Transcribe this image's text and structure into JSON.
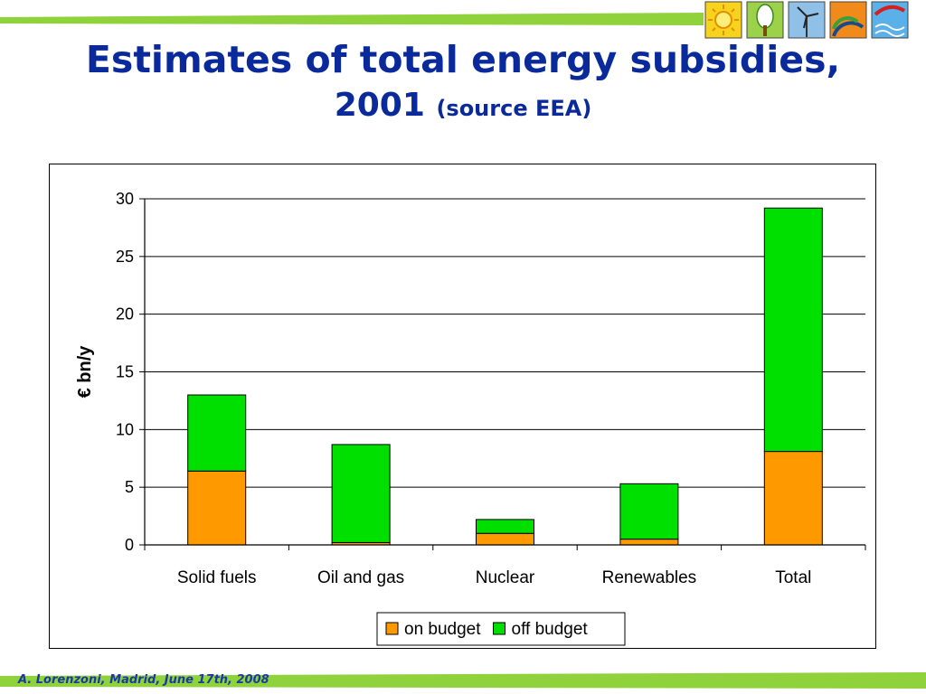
{
  "header": {
    "title_line1": "Estimates of total energy subsidies,",
    "title_year": "2001",
    "title_source": "(source EEA)",
    "band_color": "#8fd23c",
    "icons": [
      "sun-icon",
      "tree-icon",
      "wind-turbine-icon",
      "rainbow-icon",
      "wave-icon"
    ]
  },
  "footer": {
    "text": "A. Lorenzoni, Madrid, June 17th, 2008"
  },
  "chart_data": {
    "type": "bar",
    "stacked": true,
    "categories": [
      "Solid fuels",
      "Oil and gas",
      "Nuclear",
      "Renewables",
      "Total"
    ],
    "series": [
      {
        "name": "on budget",
        "color": "#ff9900",
        "values": [
          6.4,
          0.2,
          1.0,
          0.5,
          8.1
        ]
      },
      {
        "name": "off budget",
        "color": "#00e000",
        "values": [
          6.6,
          8.5,
          1.2,
          4.8,
          21.1
        ]
      }
    ],
    "ylabel": "€ bn/y",
    "xlabel": "",
    "ylim": [
      0,
      30
    ],
    "yticks": [
      0,
      5,
      10,
      15,
      20,
      25,
      30
    ],
    "grid": true,
    "legend": "bottom-center"
  }
}
